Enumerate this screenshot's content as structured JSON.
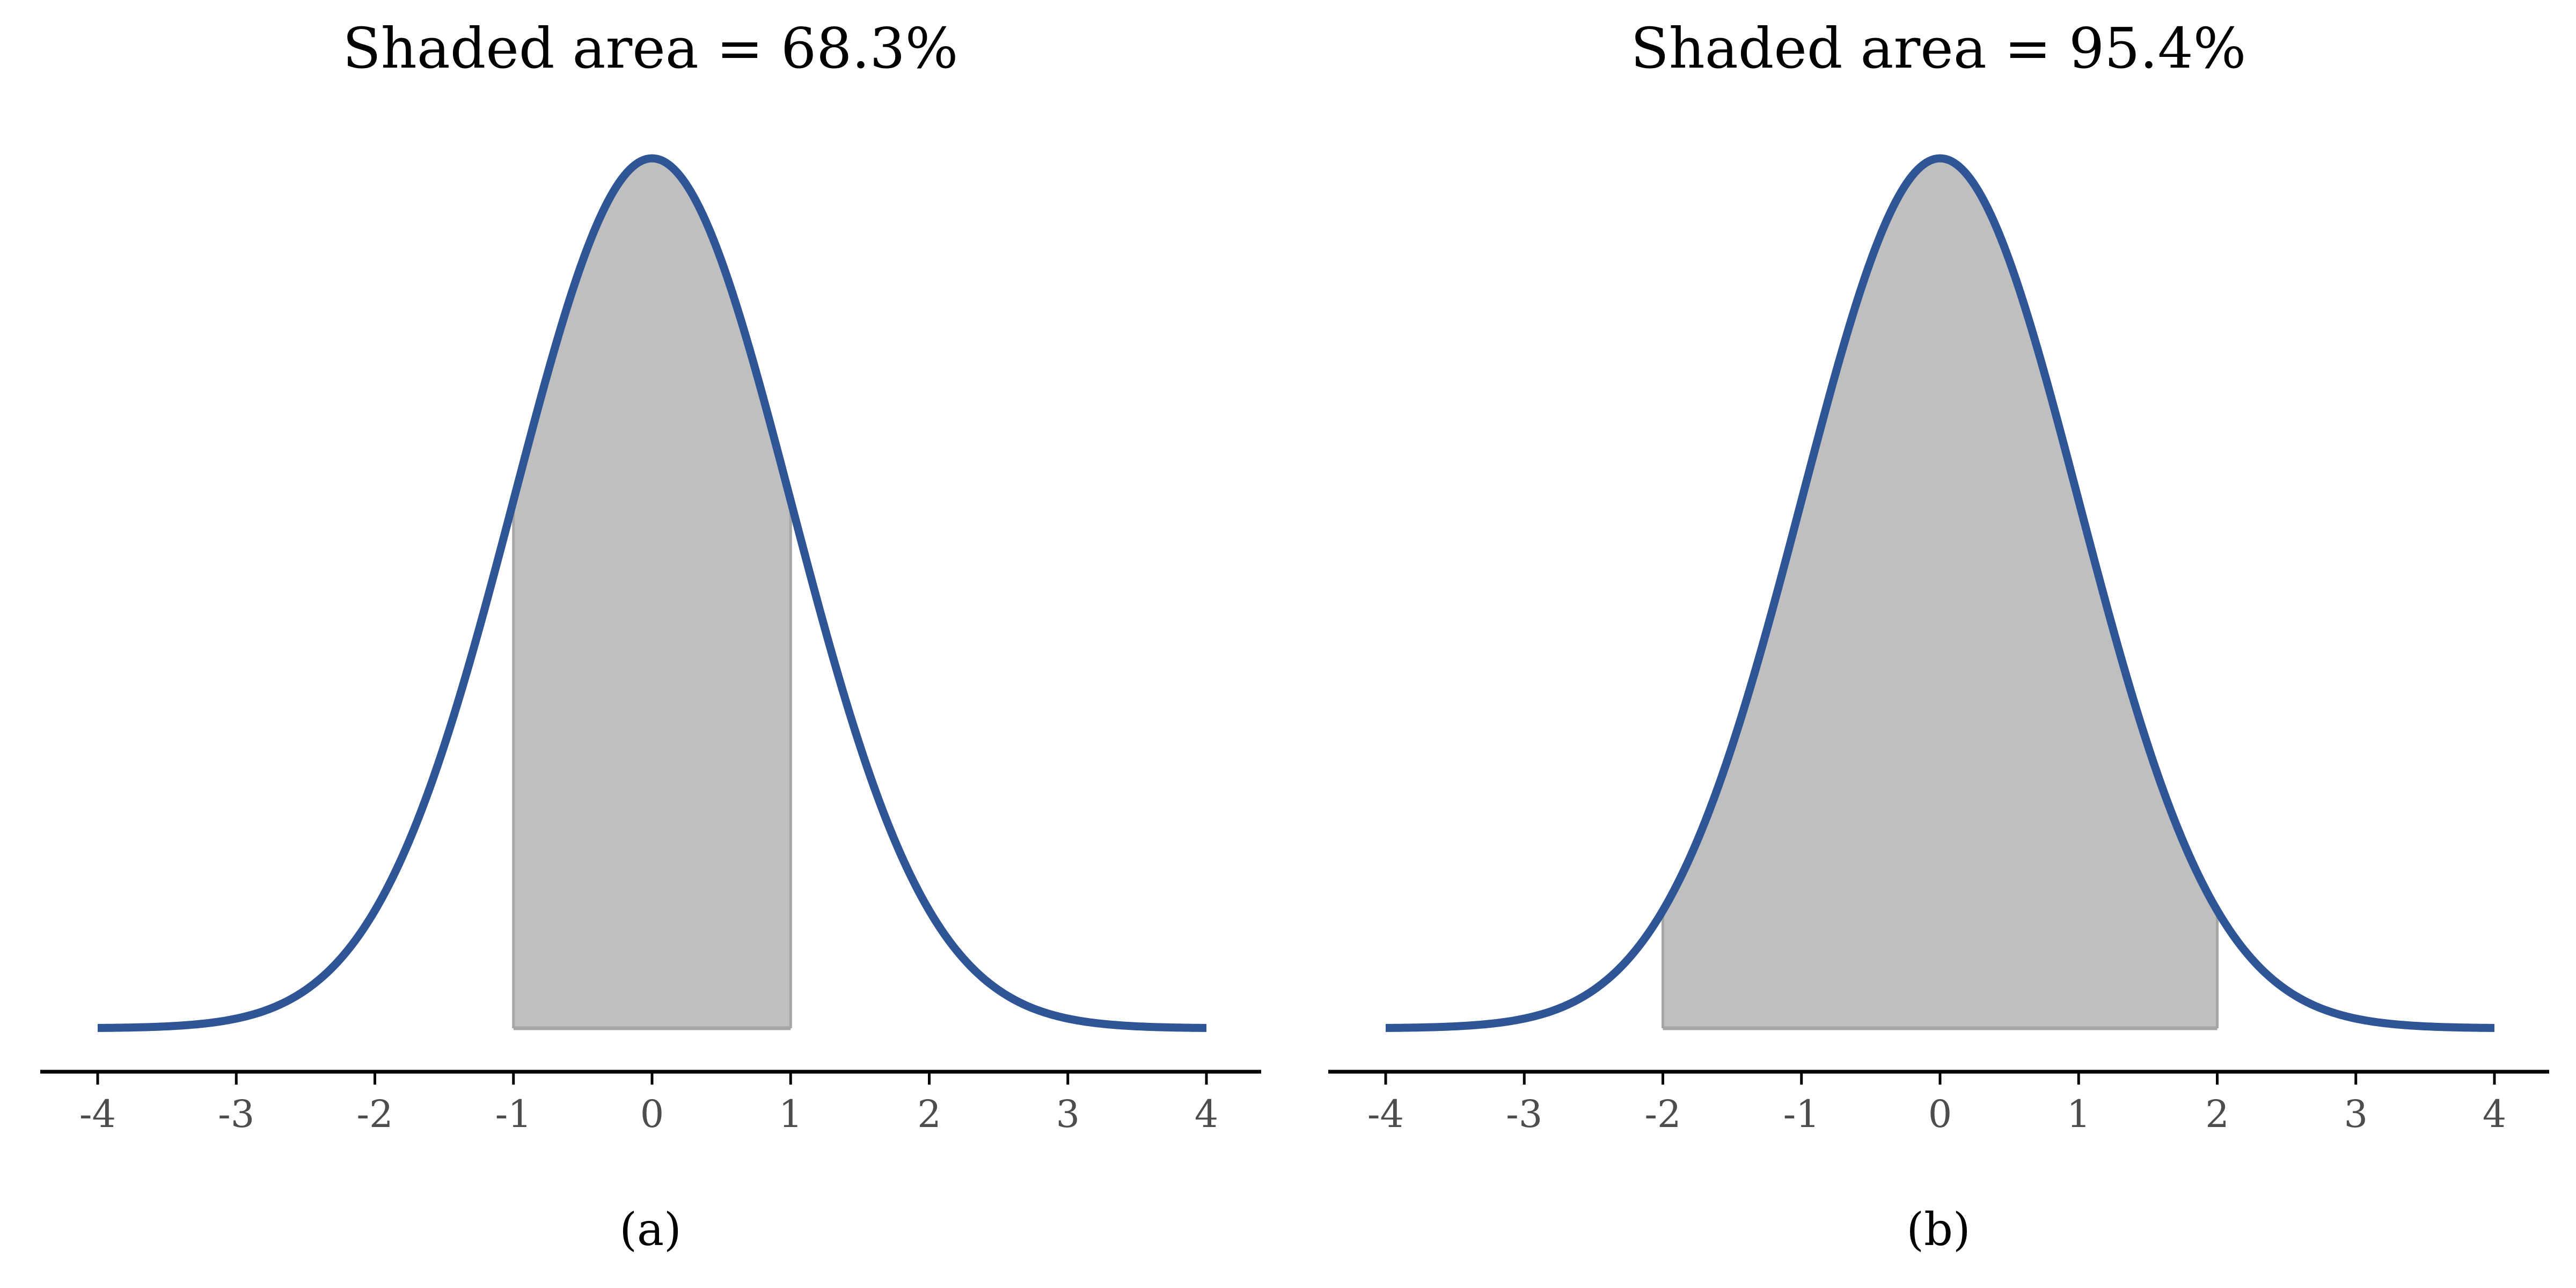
{
  "colors": {
    "curve": "#2f5597",
    "shade": "#bfbfbf",
    "shade_edge": "#a6a6a6",
    "axis": "#000000",
    "tick_text": "#4d4d4d"
  },
  "chart_data": [
    {
      "type": "area",
      "distribution": "standard normal density",
      "title": "Shaded area = 68.3%",
      "caption": "(a)",
      "xlim": [
        -4,
        4
      ],
      "shaded_interval": [
        -1,
        1
      ],
      "shaded_area_percent": 68.3,
      "x_ticks": [
        -4,
        -3,
        -2,
        -1,
        0,
        1,
        2,
        3,
        4
      ],
      "tick_labels": [
        "-4",
        "-3",
        "-2",
        "-1",
        "0",
        "1",
        "2",
        "3",
        "4"
      ],
      "xlabel": "",
      "ylabel": "",
      "grid": false
    },
    {
      "type": "area",
      "distribution": "standard normal density",
      "title": "Shaded area = 95.4%",
      "caption": "(b)",
      "xlim": [
        -4,
        4
      ],
      "shaded_interval": [
        -2,
        2
      ],
      "shaded_area_percent": 95.4,
      "x_ticks": [
        -4,
        -3,
        -2,
        -1,
        0,
        1,
        2,
        3,
        4
      ],
      "tick_labels": [
        "-4",
        "-3",
        "-2",
        "-1",
        "0",
        "1",
        "2",
        "3",
        "4"
      ],
      "xlabel": "",
      "ylabel": "",
      "grid": false
    }
  ]
}
